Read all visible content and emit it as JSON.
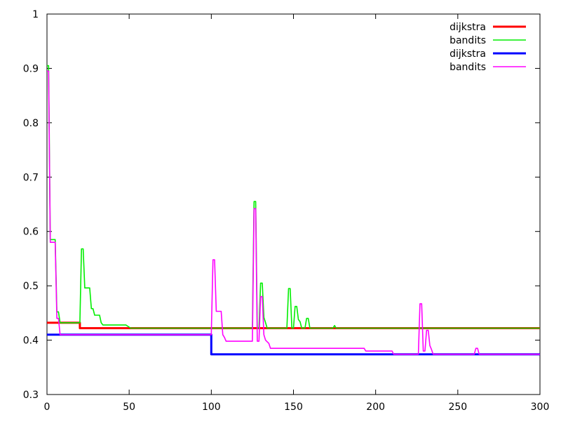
{
  "chart_data": {
    "type": "line",
    "title": "",
    "xlabel": "",
    "ylabel": "",
    "xlim": [
      0,
      300
    ],
    "ylim": [
      0.3,
      1.0
    ],
    "x_ticks": [
      "0",
      "50",
      "100",
      "150",
      "200",
      "250",
      "300"
    ],
    "y_ticks": [
      "0.3",
      "0.4",
      "0.5",
      "0.6",
      "0.7",
      "0.8",
      "0.9",
      "1"
    ],
    "grid": false,
    "legend_position": "top-right",
    "series": [
      {
        "name": "dijkstra",
        "color": "#ff0000",
        "points": [
          [
            0,
            0.432
          ],
          [
            20,
            0.432
          ],
          [
            20,
            0.422
          ],
          [
            300,
            0.422
          ]
        ]
      },
      {
        "name": "bandits",
        "color": "#00ee00",
        "points": [
          [
            0,
            0.905
          ],
          [
            1,
            0.905
          ],
          [
            2,
            0.585
          ],
          [
            5,
            0.585
          ],
          [
            6,
            0.452
          ],
          [
            7,
            0.452
          ],
          [
            8,
            0.432
          ],
          [
            19,
            0.432
          ],
          [
            20,
            0.432
          ],
          [
            21,
            0.568
          ],
          [
            22,
            0.568
          ],
          [
            23,
            0.496
          ],
          [
            25,
            0.496
          ],
          [
            26,
            0.496
          ],
          [
            27,
            0.458
          ],
          [
            28,
            0.458
          ],
          [
            29,
            0.446
          ],
          [
            32,
            0.446
          ],
          [
            33,
            0.432
          ],
          [
            34,
            0.428
          ],
          [
            48,
            0.428
          ],
          [
            50,
            0.424
          ],
          [
            51,
            0.422
          ],
          [
            125,
            0.422
          ],
          [
            126,
            0.655
          ],
          [
            127,
            0.655
          ],
          [
            128,
            0.422
          ],
          [
            129,
            0.422
          ],
          [
            130,
            0.505
          ],
          [
            131,
            0.505
          ],
          [
            132,
            0.442
          ],
          [
            133,
            0.432
          ],
          [
            134,
            0.422
          ],
          [
            146,
            0.422
          ],
          [
            147,
            0.495
          ],
          [
            148,
            0.495
          ],
          [
            149,
            0.422
          ],
          [
            150,
            0.422
          ],
          [
            151,
            0.462
          ],
          [
            152,
            0.462
          ],
          [
            153,
            0.438
          ],
          [
            154,
            0.434
          ],
          [
            155,
            0.422
          ],
          [
            157,
            0.422
          ],
          [
            158,
            0.44
          ],
          [
            159,
            0.44
          ],
          [
            160,
            0.422
          ],
          [
            174,
            0.422
          ],
          [
            175,
            0.427
          ],
          [
            176,
            0.422
          ],
          [
            300,
            0.422
          ]
        ]
      },
      {
        "name": "dijkstra",
        "color": "#0000ff",
        "points": [
          [
            0,
            0.41
          ],
          [
            100,
            0.41
          ],
          [
            100,
            0.374
          ],
          [
            300,
            0.374
          ]
        ]
      },
      {
        "name": "bandits",
        "color": "#ff00ff",
        "points": [
          [
            0,
            0.895
          ],
          [
            1,
            0.895
          ],
          [
            2,
            0.58
          ],
          [
            5,
            0.58
          ],
          [
            6,
            0.44
          ],
          [
            7,
            0.44
          ],
          [
            8,
            0.41
          ],
          [
            100,
            0.41
          ],
          [
            101,
            0.548
          ],
          [
            102,
            0.548
          ],
          [
            103,
            0.453
          ],
          [
            106,
            0.453
          ],
          [
            107,
            0.41
          ],
          [
            108,
            0.405
          ],
          [
            109,
            0.398
          ],
          [
            125,
            0.398
          ],
          [
            126,
            0.642
          ],
          [
            127,
            0.642
          ],
          [
            128,
            0.398
          ],
          [
            129,
            0.398
          ],
          [
            130,
            0.48
          ],
          [
            131,
            0.48
          ],
          [
            132,
            0.41
          ],
          [
            133,
            0.4
          ],
          [
            135,
            0.394
          ],
          [
            136,
            0.385
          ],
          [
            193,
            0.385
          ],
          [
            194,
            0.38
          ],
          [
            210,
            0.38
          ],
          [
            211,
            0.374
          ],
          [
            226,
            0.374
          ],
          [
            227,
            0.467
          ],
          [
            228,
            0.467
          ],
          [
            229,
            0.38
          ],
          [
            230,
            0.38
          ],
          [
            231,
            0.418
          ],
          [
            232,
            0.418
          ],
          [
            233,
            0.39
          ],
          [
            234,
            0.383
          ],
          [
            235,
            0.374
          ],
          [
            260,
            0.374
          ],
          [
            261,
            0.385
          ],
          [
            262,
            0.385
          ],
          [
            263,
            0.374
          ],
          [
            300,
            0.374
          ]
        ]
      }
    ]
  }
}
